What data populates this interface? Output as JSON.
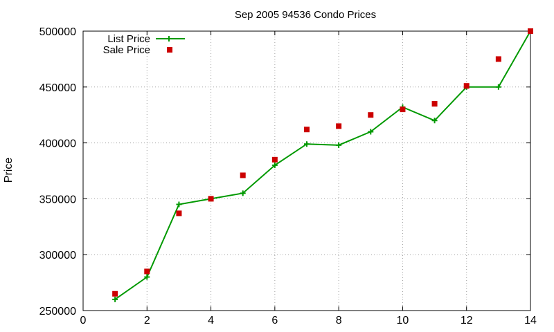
{
  "chart_data": {
    "type": "line",
    "title": "Sep 2005 94536 Condo Prices",
    "xlabel": "",
    "ylabel": "Price",
    "xlim": [
      0,
      14
    ],
    "ylim": [
      250000,
      500000
    ],
    "x_ticks": [
      0,
      2,
      4,
      6,
      8,
      10,
      12,
      14
    ],
    "y_ticks": [
      250000,
      300000,
      350000,
      400000,
      450000,
      500000
    ],
    "grid": true,
    "legend_position": "top-left",
    "series": [
      {
        "name": "List Price",
        "style": "line-with-plus-markers",
        "color": "#009900",
        "x": [
          1,
          2,
          3,
          4,
          5,
          6,
          7,
          8,
          9,
          10,
          11,
          12,
          13,
          14
        ],
        "y": [
          260000,
          280000,
          345000,
          350000,
          355000,
          380000,
          399000,
          398000,
          410000,
          432000,
          420000,
          450000,
          450000,
          500000
        ]
      },
      {
        "name": "Sale Price",
        "style": "square-markers",
        "color": "#cc0000",
        "x": [
          1,
          2,
          3,
          4,
          5,
          6,
          7,
          8,
          9,
          10,
          11,
          12,
          13,
          14
        ],
        "y": [
          265000,
          285000,
          337000,
          350000,
          371000,
          385000,
          412000,
          415000,
          425000,
          430000,
          435000,
          451000,
          475000,
          500000
        ]
      }
    ]
  }
}
